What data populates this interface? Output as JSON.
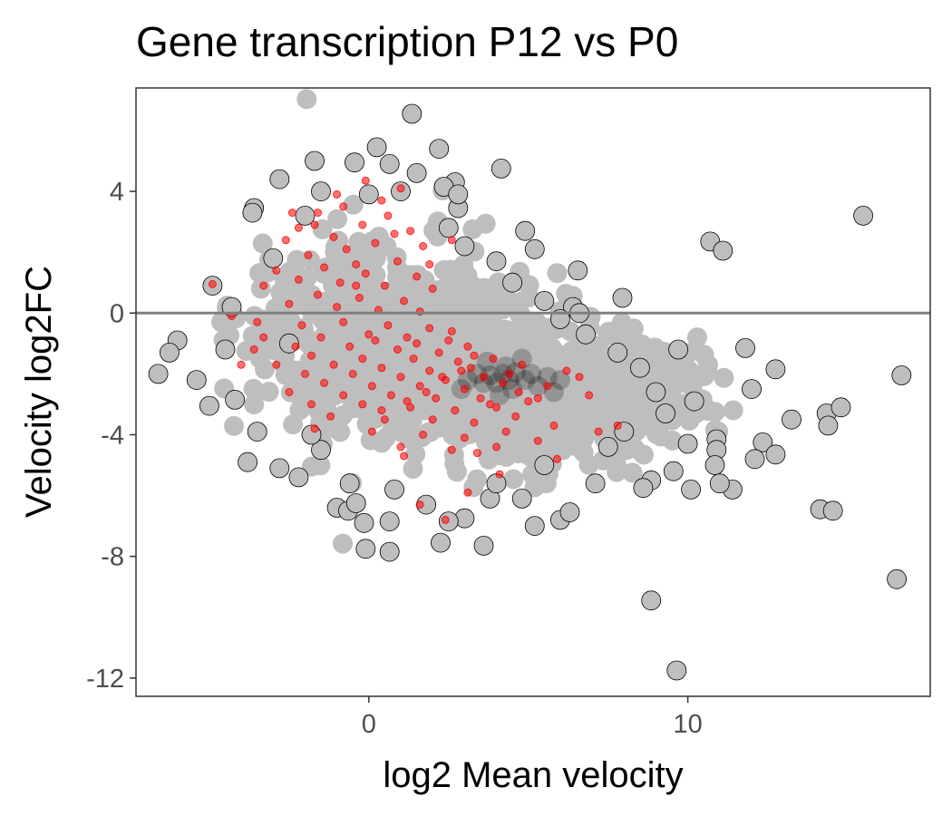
{
  "chart_data": {
    "type": "scatter",
    "title": "Gene transcription P12 vs P0",
    "xlabel": "log2 Mean velocity",
    "ylabel": "Velocity log2FC",
    "xlim": [
      -7.3,
      17.6
    ],
    "ylim": [
      -12.6,
      7.4
    ],
    "x_ticks": [
      0,
      10
    ],
    "x_tick_labels": [
      "0",
      "10"
    ],
    "y_ticks": [
      4,
      0,
      -4,
      -8,
      -12
    ],
    "y_tick_labels": [
      "4",
      "0",
      "-4",
      "-8",
      "-12"
    ],
    "reference_line_y": 0,
    "grid": false,
    "legend": "none",
    "colors": {
      "background_point": "#bebebe",
      "dense_core": "#000000",
      "highlight_point": "#ff0000",
      "reference_line": "#7f7f7f",
      "panel_border": "#333333"
    },
    "series": [
      {
        "role": "background",
        "points": [
          [
            1.35,
            6.55
          ],
          [
            0.25,
            5.45
          ],
          [
            2.2,
            5.4
          ],
          [
            -1.7,
            5.0
          ],
          [
            -0.45,
            4.95
          ],
          [
            0.65,
            4.9
          ],
          [
            4.15,
            4.75
          ],
          [
            -2.8,
            4.4
          ],
          [
            2.7,
            4.3
          ],
          [
            2.35,
            4.15
          ],
          [
            1.0,
            4.0
          ],
          [
            -1.5,
            4.0
          ],
          [
            -3.6,
            3.45
          ],
          [
            -3.65,
            3.3
          ],
          [
            2.8,
            3.45
          ],
          [
            15.5,
            3.2
          ],
          [
            2.5,
            2.8
          ],
          [
            4.9,
            2.7
          ],
          [
            5.2,
            2.1
          ],
          [
            4.0,
            1.7
          ],
          [
            10.7,
            2.35
          ],
          [
            11.1,
            2.05
          ],
          [
            6.55,
            1.4
          ],
          [
            -4.9,
            0.9
          ],
          [
            7.95,
            0.5
          ],
          [
            6.4,
            0.2
          ],
          [
            6.6,
            0.0
          ],
          [
            -6.0,
            -0.9
          ],
          [
            -6.25,
            -1.3
          ],
          [
            -6.6,
            -2.0
          ],
          [
            9.7,
            -1.2
          ],
          [
            11.8,
            -1.15
          ],
          [
            12.75,
            -1.85
          ],
          [
            16.7,
            -2.05
          ],
          [
            -4.2,
            -2.85
          ],
          [
            -5.0,
            -3.05
          ],
          [
            12.0,
            -2.5
          ],
          [
            13.25,
            -3.5
          ],
          [
            14.35,
            -3.3
          ],
          [
            14.8,
            -3.1
          ],
          [
            14.4,
            -3.7
          ],
          [
            -3.8,
            -4.9
          ],
          [
            10.9,
            -4.15
          ],
          [
            10.9,
            -4.5
          ],
          [
            12.35,
            -4.25
          ],
          [
            12.1,
            -4.8
          ],
          [
            12.75,
            -4.65
          ],
          [
            9.55,
            -5.2
          ],
          [
            10.85,
            -5.0
          ],
          [
            8.85,
            -5.5
          ],
          [
            -2.2,
            -5.4
          ],
          [
            -1.0,
            -6.4
          ],
          [
            -0.65,
            -6.5
          ],
          [
            -0.4,
            -6.25
          ],
          [
            3.0,
            -6.75
          ],
          [
            4.8,
            -6.1
          ],
          [
            7.1,
            -5.6
          ],
          [
            8.6,
            -5.75
          ],
          [
            10.1,
            -5.8
          ],
          [
            11.4,
            -5.8
          ],
          [
            11.0,
            -5.6
          ],
          [
            -0.15,
            -6.9
          ],
          [
            0.65,
            -6.85
          ],
          [
            2.5,
            -6.85
          ],
          [
            5.2,
            -7.0
          ],
          [
            6.0,
            -6.8
          ],
          [
            6.3,
            -6.55
          ],
          [
            2.25,
            -7.55
          ],
          [
            -0.1,
            -7.75
          ],
          [
            0.65,
            -7.85
          ],
          [
            3.6,
            -7.65
          ],
          [
            14.15,
            -6.45
          ],
          [
            14.55,
            -6.5
          ],
          [
            16.55,
            -8.75
          ],
          [
            8.85,
            -9.45
          ],
          [
            9.65,
            -11.75
          ],
          [
            -2.5,
            -1.0
          ],
          [
            -3.0,
            1.8
          ],
          [
            -2.0,
            3.2
          ],
          [
            -4.5,
            -1.2
          ],
          [
            -3.5,
            -3.9
          ],
          [
            -1.5,
            -4.5
          ],
          [
            1.5,
            4.6
          ],
          [
            3.0,
            2.2
          ],
          [
            5.5,
            0.4
          ],
          [
            6.8,
            -0.7
          ],
          [
            8.5,
            -1.8
          ],
          [
            9.3,
            -3.3
          ],
          [
            7.5,
            -4.4
          ],
          [
            5.5,
            -5.0
          ],
          [
            3.8,
            -6.1
          ],
          [
            1.8,
            -6.3
          ],
          [
            -0.6,
            -5.6
          ],
          [
            -2.8,
            -5.1
          ],
          [
            -4.3,
            0.2
          ],
          [
            -5.4,
            -2.2
          ],
          [
            0.0,
            3.9
          ],
          [
            2.8,
            3.9
          ],
          [
            4.5,
            1.0
          ],
          [
            6.0,
            -0.2
          ],
          [
            7.8,
            -1.3
          ],
          [
            9.0,
            -2.6
          ],
          [
            10.2,
            -2.9
          ],
          [
            8.0,
            -3.9
          ],
          [
            10.0,
            -4.3
          ],
          [
            4.0,
            -5.6
          ],
          [
            0.8,
            -5.8
          ],
          [
            -1.8,
            -4.0
          ]
        ]
      },
      {
        "role": "dense_core",
        "points": [
          [
            4.2,
            -2.0
          ],
          [
            4.4,
            -2.2
          ],
          [
            4.0,
            -2.3
          ],
          [
            4.6,
            -1.95
          ],
          [
            3.8,
            -2.05
          ],
          [
            4.3,
            -1.75
          ],
          [
            4.9,
            -2.2
          ],
          [
            3.6,
            -2.3
          ],
          [
            5.1,
            -2.0
          ],
          [
            4.5,
            -2.5
          ],
          [
            3.4,
            -2.0
          ],
          [
            5.3,
            -2.4
          ],
          [
            3.1,
            -2.2
          ],
          [
            5.6,
            -2.1
          ],
          [
            4.1,
            -2.7
          ],
          [
            2.9,
            -2.5
          ],
          [
            5.8,
            -2.6
          ],
          [
            3.7,
            -1.6
          ],
          [
            4.8,
            -1.5
          ],
          [
            6.0,
            -2.2
          ]
        ]
      },
      {
        "role": "highlight",
        "points": [
          [
            -0.1,
            4.35
          ],
          [
            1.0,
            4.1
          ],
          [
            -1.0,
            3.9
          ],
          [
            0.4,
            3.7
          ],
          [
            -0.8,
            3.5
          ],
          [
            -1.6,
            3.3
          ],
          [
            0.6,
            3.2
          ],
          [
            -2.2,
            2.8
          ],
          [
            -0.2,
            2.9
          ],
          [
            1.3,
            2.7
          ],
          [
            -1.1,
            2.5
          ],
          [
            -2.6,
            2.4
          ],
          [
            0.2,
            2.3
          ],
          [
            1.7,
            2.2
          ],
          [
            -0.7,
            2.1
          ],
          [
            -1.9,
            1.9
          ],
          [
            -0.4,
            1.6
          ],
          [
            0.9,
            1.7
          ],
          [
            -2.9,
            1.4
          ],
          [
            -1.4,
            1.5
          ],
          [
            -0.1,
            1.3
          ],
          [
            1.5,
            1.2
          ],
          [
            -2.2,
            1.1
          ],
          [
            -0.9,
            1.0
          ],
          [
            0.5,
            0.9
          ],
          [
            -3.3,
            0.9
          ],
          [
            2.0,
            0.8
          ],
          [
            -1.6,
            0.6
          ],
          [
            -0.3,
            0.5
          ],
          [
            1.1,
            0.4
          ],
          [
            -2.5,
            0.3
          ],
          [
            -1.0,
            0.2
          ],
          [
            0.3,
            0.1
          ],
          [
            1.6,
            0.05
          ],
          [
            -4.9,
            0.95
          ],
          [
            -4.3,
            -0.1
          ],
          [
            -3.5,
            -0.3
          ],
          [
            -2.1,
            -0.4
          ],
          [
            -0.8,
            -0.3
          ],
          [
            0.6,
            -0.4
          ],
          [
            1.9,
            -0.5
          ],
          [
            -3.3,
            -0.8
          ],
          [
            -1.5,
            -0.8
          ],
          [
            0.0,
            -0.7
          ],
          [
            1.2,
            -0.8
          ],
          [
            2.5,
            -0.9
          ],
          [
            -2.3,
            -1.1
          ],
          [
            -0.6,
            -1.1
          ],
          [
            0.9,
            -1.2
          ],
          [
            2.2,
            -1.3
          ],
          [
            -3.6,
            -1.2
          ],
          [
            -1.8,
            -1.4
          ],
          [
            -0.2,
            -1.5
          ],
          [
            1.4,
            -1.5
          ],
          [
            2.8,
            -1.6
          ],
          [
            -2.9,
            -1.7
          ],
          [
            -1.1,
            -1.7
          ],
          [
            0.4,
            -1.8
          ],
          [
            1.9,
            -1.9
          ],
          [
            3.2,
            -1.8
          ],
          [
            -4.0,
            -1.7
          ],
          [
            -2.0,
            -2.0
          ],
          [
            -0.5,
            -2.0
          ],
          [
            1.0,
            -2.1
          ],
          [
            2.4,
            -2.2
          ],
          [
            3.6,
            -2.1
          ],
          [
            -1.4,
            -2.3
          ],
          [
            0.1,
            -2.4
          ],
          [
            1.6,
            -2.4
          ],
          [
            3.0,
            -2.5
          ],
          [
            4.2,
            -2.3
          ],
          [
            -2.5,
            -2.6
          ],
          [
            -0.8,
            -2.7
          ],
          [
            0.7,
            -2.7
          ],
          [
            2.1,
            -2.8
          ],
          [
            3.5,
            -2.8
          ],
          [
            4.7,
            -2.6
          ],
          [
            -1.8,
            -3.0
          ],
          [
            -0.2,
            -3.0
          ],
          [
            1.3,
            -3.1
          ],
          [
            2.7,
            -3.2
          ],
          [
            4.0,
            -3.1
          ],
          [
            5.3,
            -2.8
          ],
          [
            -1.2,
            -3.4
          ],
          [
            0.5,
            -3.5
          ],
          [
            2.0,
            -3.5
          ],
          [
            3.3,
            -3.6
          ],
          [
            4.6,
            -3.4
          ],
          [
            -1.7,
            -3.8
          ],
          [
            0.1,
            -3.9
          ],
          [
            1.7,
            -4.0
          ],
          [
            3.0,
            -4.1
          ],
          [
            4.3,
            -3.9
          ],
          [
            5.8,
            -3.7
          ],
          [
            1.0,
            -4.4
          ],
          [
            2.6,
            -4.5
          ],
          [
            4.0,
            -4.4
          ],
          [
            5.3,
            -4.2
          ],
          [
            1.1,
            -4.7
          ],
          [
            3.4,
            -4.6
          ],
          [
            5.9,
            -4.8
          ],
          [
            7.2,
            -3.9
          ],
          [
            7.8,
            -3.7
          ],
          [
            6.6,
            -2.1
          ],
          [
            6.9,
            -2.7
          ],
          [
            3.8,
            -3.0
          ],
          [
            4.4,
            -2.0
          ],
          [
            3.9,
            -1.5
          ],
          [
            4.8,
            -1.7
          ],
          [
            5.0,
            -2.9
          ],
          [
            5.6,
            -2.4
          ],
          [
            6.2,
            -1.9
          ],
          [
            2.4,
            -6.8
          ],
          [
            1.6,
            -6.3
          ],
          [
            4.1,
            -5.3
          ],
          [
            3.1,
            -5.9
          ],
          [
            0.4,
            -3.2
          ],
          [
            1.2,
            -2.9
          ],
          [
            1.8,
            -2.6
          ],
          [
            2.3,
            -2.1
          ],
          [
            2.9,
            -1.9
          ],
          [
            3.3,
            -1.4
          ],
          [
            1.5,
            -1.0
          ],
          [
            2.6,
            -0.6
          ],
          [
            3.1,
            -1.1
          ],
          [
            0.2,
            -0.9
          ],
          [
            -0.4,
            0.9
          ],
          [
            0.8,
            2.6
          ],
          [
            2.6,
            2.4
          ],
          [
            1.9,
            1.6
          ],
          [
            -1.7,
            2.9
          ],
          [
            -2.4,
            3.3
          ]
        ]
      }
    ]
  }
}
